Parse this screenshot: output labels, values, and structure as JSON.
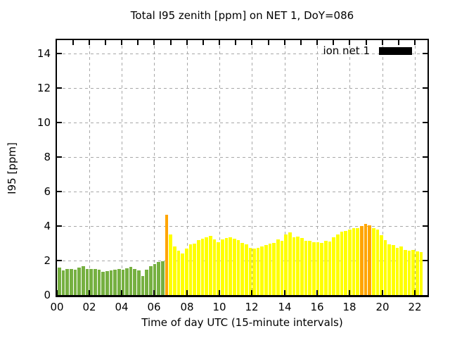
{
  "title": "Total I95 zenith [ppm] on NET 1, DoY=086",
  "chart_data": {
    "type": "bar",
    "title": "Total I95 zenith [ppm] on NET 1, DoY=086",
    "xlabel": "Time of day UTC (15-minute intervals)",
    "ylabel": "I95 [ppm]",
    "legend": {
      "label": "ion net 1",
      "swatch_color": "#000000",
      "position": "top-right-inside"
    },
    "grid": true,
    "ylim": [
      0,
      14.78
    ],
    "yticks": [
      0,
      2,
      4,
      6,
      8,
      10,
      12,
      14
    ],
    "xtick_labels": [
      "00",
      "02",
      "04",
      "06",
      "08",
      "10",
      "12",
      "14",
      "16",
      "18",
      "20",
      "22"
    ],
    "xtick_hours": [
      0,
      2,
      4,
      6,
      8,
      10,
      12,
      14,
      16,
      18,
      20,
      22
    ],
    "x_axis_span_hours": 22.75,
    "minor_xtick_every_hours": 1,
    "interval_minutes": 15,
    "bar_colors": {
      "g": "#76b041",
      "y": "#ffff00",
      "o": "#ffa500"
    },
    "x": [
      "00:00",
      "00:15",
      "00:30",
      "00:45",
      "01:00",
      "01:15",
      "01:30",
      "01:45",
      "02:00",
      "02:15",
      "02:30",
      "02:45",
      "03:00",
      "03:15",
      "03:30",
      "03:45",
      "04:00",
      "04:15",
      "04:30",
      "04:45",
      "05:00",
      "05:15",
      "05:30",
      "05:45",
      "06:00",
      "06:15",
      "06:30",
      "06:45",
      "07:00",
      "07:15",
      "07:30",
      "07:45",
      "08:00",
      "08:15",
      "08:30",
      "08:45",
      "09:00",
      "09:15",
      "09:30",
      "09:45",
      "10:00",
      "10:15",
      "10:30",
      "10:45",
      "11:00",
      "11:15",
      "11:30",
      "11:45",
      "12:00",
      "12:15",
      "12:30",
      "12:45",
      "13:00",
      "13:15",
      "13:30",
      "13:45",
      "14:00",
      "14:15",
      "14:30",
      "14:45",
      "15:00",
      "15:15",
      "15:30",
      "15:45",
      "16:00",
      "16:15",
      "16:30",
      "16:45",
      "17:00",
      "17:15",
      "17:30",
      "17:45",
      "18:00",
      "18:15",
      "18:30",
      "18:45",
      "19:00",
      "19:15",
      "19:30",
      "19:45",
      "20:00",
      "20:15",
      "20:30",
      "20:45",
      "21:00",
      "21:15",
      "21:30",
      "21:45",
      "22:00",
      "22:15",
      "22:30",
      "22:45"
    ],
    "values": [
      1.6,
      1.43,
      1.53,
      1.53,
      1.49,
      1.6,
      1.67,
      1.53,
      1.52,
      1.52,
      1.47,
      1.33,
      1.4,
      1.43,
      1.47,
      1.52,
      1.49,
      1.56,
      1.63,
      1.53,
      1.43,
      1.11,
      1.46,
      1.69,
      1.8,
      1.9,
      1.95,
      4.65,
      3.5,
      2.8,
      2.56,
      2.4,
      2.7,
      2.94,
      3.0,
      3.17,
      3.25,
      3.35,
      3.41,
      3.24,
      3.07,
      3.22,
      3.29,
      3.33,
      3.25,
      3.2,
      3.01,
      2.96,
      2.75,
      2.69,
      2.75,
      2.83,
      2.89,
      2.99,
      3.03,
      3.23,
      3.16,
      3.52,
      3.63,
      3.36,
      3.39,
      3.29,
      3.16,
      3.16,
      3.07,
      3.07,
      3.03,
      3.16,
      3.12,
      3.36,
      3.52,
      3.69,
      3.73,
      3.8,
      3.86,
      3.89,
      4.0,
      4.12,
      4.05,
      3.89,
      3.8,
      3.46,
      3.17,
      2.95,
      2.9,
      2.73,
      2.83,
      2.63,
      2.56,
      2.6,
      2.52,
      2.48
    ],
    "colors_by_bar": "gggggggggggggggggggggggggggoyyyyyyyyyyyyyyyyyyyyyyyyyyyyyyyyyyyyyyyyyyyyyyyyoooyyyyyyyyyyyyy"
  }
}
